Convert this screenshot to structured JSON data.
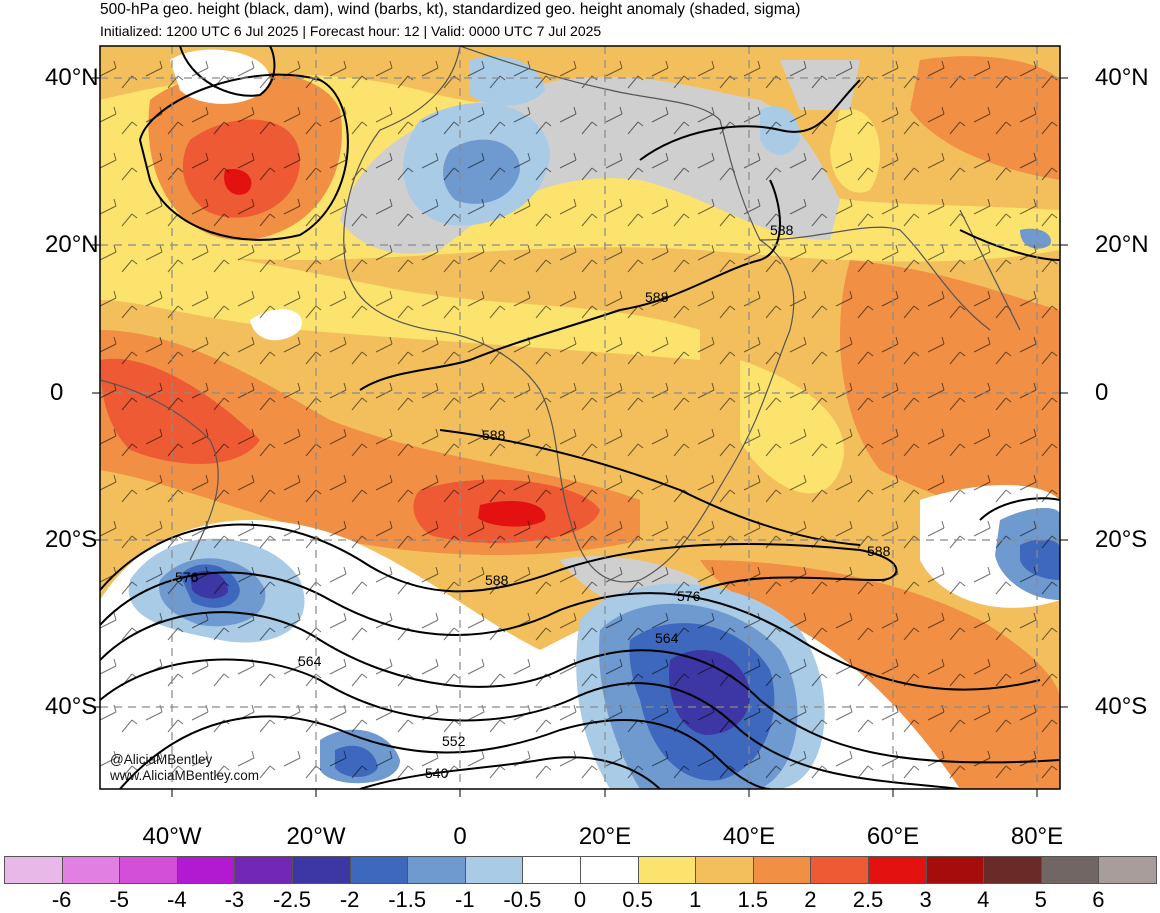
{
  "header": {
    "title": "500-hPa geo. height (black, dam), wind (barbs, kt), standardized geo. height anomaly (shaded, sigma)",
    "subtitle": "Initialized: 1200 UTC 6 Jul 2025 | Forecast hour: 12 | Valid: 0000 UTC 7 Jul 2025"
  },
  "axes": {
    "lat_left": [
      "40°N",
      "20°N",
      "0",
      "20°S",
      "40°S"
    ],
    "lat_right": [
      "40°N",
      "20°N",
      "0",
      "20°S",
      "40°S"
    ],
    "lon": [
      "40°W",
      "20°W",
      "0",
      "20°E",
      "40°E",
      "60°E",
      "80°E"
    ]
  },
  "contour_labels": [
    "588",
    "588",
    "588",
    "588",
    "588",
    "576",
    "576",
    "564",
    "564",
    "552",
    "540"
  ],
  "credit": {
    "handle": "@AliciaMBentley",
    "site": "www.AliciaMBentley.com"
  },
  "colorbar": {
    "labels": [
      "-6",
      "-5",
      "-4",
      "-3",
      "-2.5",
      "-2",
      "-1.5",
      "-1",
      "-0.5",
      "0",
      "0.5",
      "1",
      "1.5",
      "2",
      "2.5",
      "3",
      "4",
      "5",
      "6"
    ],
    "colors": [
      "#e8b8e8",
      "#e27fe2",
      "#d44fd8",
      "#b21ad2",
      "#7228b4",
      "#3c37a4",
      "#3d68bd",
      "#6e9ad0",
      "#a9cbe6",
      "#ffffff",
      "#ffffff",
      "#fbe36e",
      "#f3bf5c",
      "#f18f45",
      "#ee5a33",
      "#e3110f",
      "#a50c0c",
      "#6a2a27",
      "#726664",
      "#a89d9b"
    ]
  },
  "colors": {
    "land_background": "#f3bf5c",
    "gray_mask": "#cfcfcf",
    "contour": "#000000",
    "grid": "#8a8a8a"
  }
}
